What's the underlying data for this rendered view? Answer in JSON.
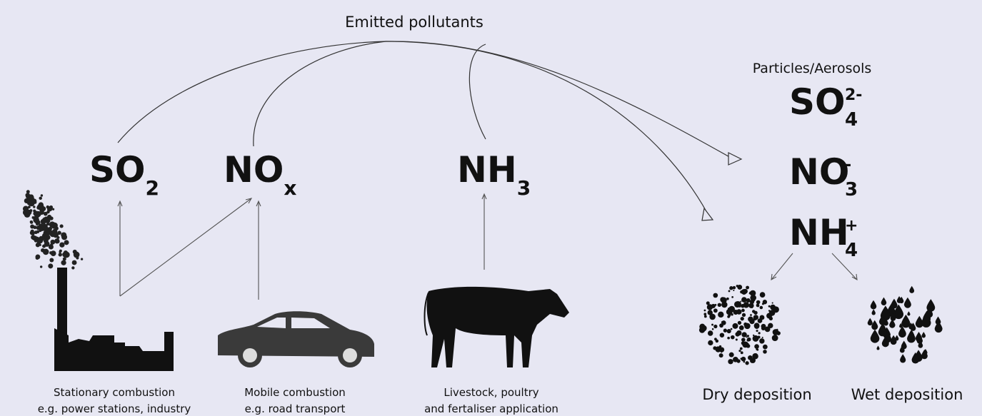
{
  "header": {
    "title": "Emitted pollutants"
  },
  "pollutants": [
    {
      "base": "SO",
      "sub": "2"
    },
    {
      "base": "NO",
      "sub": "x"
    },
    {
      "base": "NH",
      "sub": "3"
    }
  ],
  "particles": {
    "title": "Particles/Aerosols",
    "ions": [
      {
        "base": "SO",
        "sub": "4",
        "sup": "2-"
      },
      {
        "base": "NO",
        "sub": "3",
        "sup": "-"
      },
      {
        "base": "NH",
        "sub": "4",
        "sup": "+"
      }
    ]
  },
  "sources": [
    {
      "line1": "Stationary combustion",
      "line2": "e.g. power stations, industry"
    },
    {
      "line1": "Mobile combustion",
      "line2": "e.g. road transport"
    },
    {
      "line1": "Livestock, poultry",
      "line2": "and fertaliser application"
    }
  ],
  "deposition": [
    "Dry deposition",
    "Wet deposition"
  ]
}
